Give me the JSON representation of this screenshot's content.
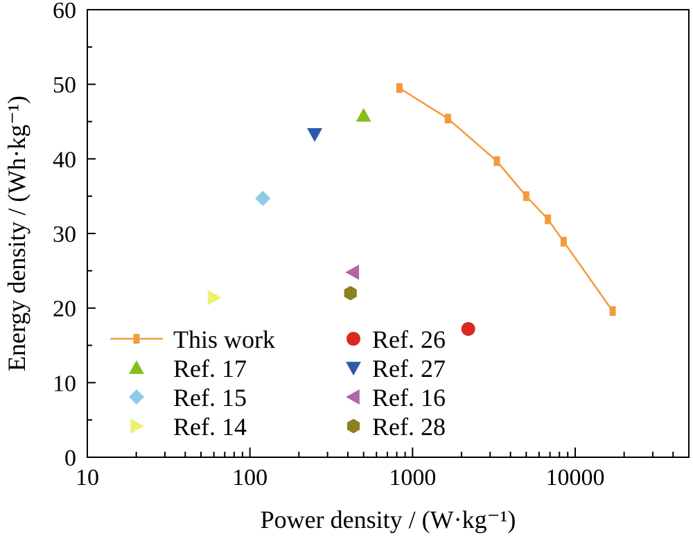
{
  "chart_data": {
    "type": "scatter",
    "x_scale": "log",
    "xlim": [
      10,
      50000
    ],
    "ylim": [
      0,
      60
    ],
    "x_ticks": [
      10,
      100,
      1000,
      10000
    ],
    "x_tick_labels": [
      "10",
      "100",
      "1000",
      "10000"
    ],
    "y_ticks": [
      0,
      10,
      20,
      30,
      40,
      50,
      60
    ],
    "y_tick_labels": [
      "0",
      "10",
      "20",
      "30",
      "40",
      "50",
      "60"
    ],
    "xlabel": "Power density / (W·kg⁻¹)",
    "ylabel": "Energy density / (Wh·kg⁻¹)",
    "legend_position": "bottom-left",
    "series": [
      {
        "name": "This work",
        "marker": "square",
        "line": true,
        "color": "#f39a3a",
        "x": [
          830,
          1650,
          3300,
          5000,
          6800,
          8500,
          17000
        ],
        "y": [
          49.5,
          45.4,
          39.7,
          35.0,
          31.9,
          28.9,
          19.6
        ]
      },
      {
        "name": "Ref. 17",
        "marker": "triangle-up",
        "color": "#86bd1c",
        "x": [
          500
        ],
        "y": [
          45.8
        ]
      },
      {
        "name": "Ref. 15",
        "marker": "diamond",
        "color": "#8ccbe5",
        "x": [
          120
        ],
        "y": [
          34.7
        ]
      },
      {
        "name": "Ref. 14",
        "marker": "triangle-right",
        "color": "#eef070",
        "x": [
          60
        ],
        "y": [
          21.4
        ]
      },
      {
        "name": "Ref. 26",
        "marker": "circle",
        "color": "#d92a20",
        "x": [
          2200
        ],
        "y": [
          17.2
        ]
      },
      {
        "name": "Ref. 27",
        "marker": "triangle-down",
        "color": "#2a5baa",
        "x": [
          250
        ],
        "y": [
          43.3
        ]
      },
      {
        "name": "Ref. 16",
        "marker": "triangle-left",
        "color": "#b066aa",
        "x": [
          430
        ],
        "y": [
          24.8
        ]
      },
      {
        "name": "Ref. 28",
        "marker": "hexagon",
        "color": "#8a8120",
        "x": [
          415
        ],
        "y": [
          22.0
        ]
      }
    ]
  }
}
